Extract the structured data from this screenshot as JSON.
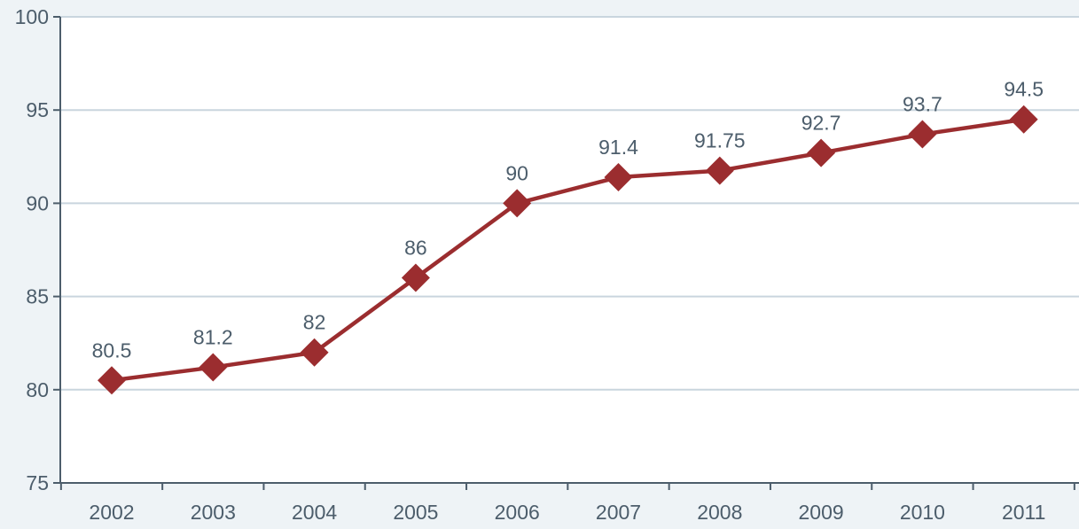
{
  "chart_data": {
    "type": "line",
    "title": "",
    "xlabel": "",
    "ylabel": "",
    "categories": [
      "2002",
      "2003",
      "2004",
      "2005",
      "2006",
      "2007",
      "2008",
      "2009",
      "2010",
      "2011"
    ],
    "series": [
      {
        "values": [
          80.5,
          81.2,
          82,
          86,
          90,
          91.4,
          91.75,
          92.7,
          93.7,
          94.5
        ],
        "labels": [
          "80.5",
          "81.2",
          "82",
          "86",
          "90",
          "91.4",
          "91.75",
          "92.7",
          "93.7",
          "94.5"
        ],
        "color": "#9b2d2f",
        "marker": "diamond"
      }
    ],
    "ylim": [
      75,
      100
    ],
    "yticks": [
      "75",
      "80",
      "85",
      "90",
      "95",
      "100"
    ],
    "grid": true,
    "legend": "none",
    "colors": {
      "background": "#eef3f6",
      "plot_background": "#ffffff",
      "gridline": "#c9d5de",
      "axis": "#4c5d6b",
      "text": "#4c5d6b"
    }
  }
}
